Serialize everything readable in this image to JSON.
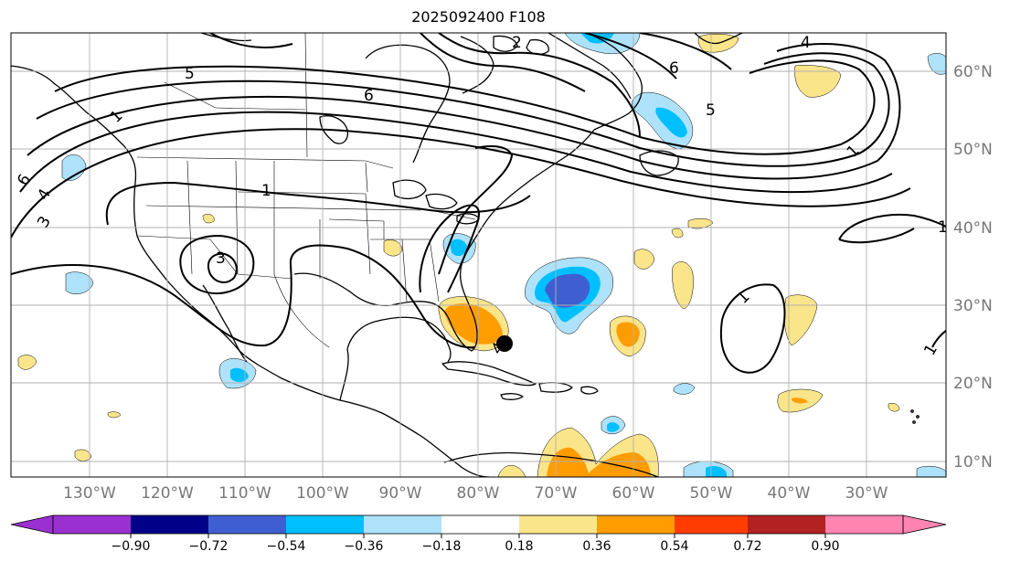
{
  "title": "2025092400 F108",
  "lon_labels": [
    "130°W",
    "120°W",
    "110°W",
    "100°W",
    "90°W",
    "80°W",
    "70°W",
    "60°W",
    "50°W",
    "40°W",
    "30°W"
  ],
  "lat_labels": [
    "60°N",
    "50°N",
    "40°N",
    "30°N",
    "20°N",
    "10°N"
  ],
  "contour_labels": [
    "5",
    "6",
    "1",
    "4",
    "3",
    "3",
    "2",
    "6",
    "6",
    "5",
    "4",
    "1",
    "1",
    "1",
    "1",
    "1"
  ],
  "colorbar": {
    "ticks": [
      "−0.90",
      "−0.72",
      "−0.54",
      "−0.36",
      "−0.18",
      "0.18",
      "0.36",
      "0.54",
      "0.72",
      "0.90"
    ],
    "colors": [
      "#9b30d0",
      "#000088",
      "#3f5fd0",
      "#00bfff",
      "#ade2fa",
      "#ffffff",
      "#fbe58a",
      "#ff9d00",
      "#ff3d00",
      "#b22222",
      "#ff85b0"
    ]
  },
  "colors": {
    "land_outline": "#000000",
    "contour": "#000000",
    "grid": "#b0b0b0",
    "label_gray": "#777777"
  }
}
